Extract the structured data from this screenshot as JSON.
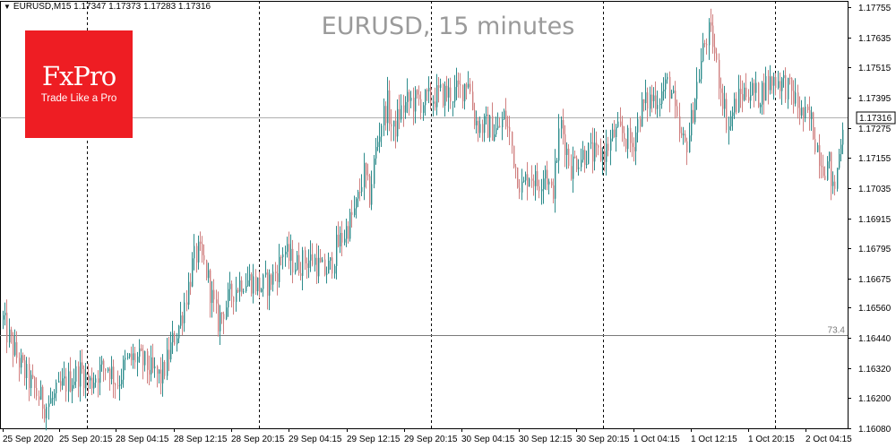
{
  "header": {
    "triangle": "▼",
    "text": "EURUSD,M15  1.17347 1.17373 1.17283 1.17316"
  },
  "title": "EURUSD, 15 minutes",
  "logo": {
    "brand": "FxPro",
    "tagline": "Trade Like a Pro"
  },
  "colors": {
    "bull": "#2d8c8c",
    "bear": "#d08080",
    "grid": "#000000",
    "axis_text": "#000000",
    "logo_bg": "#ee1d23",
    "title": "#9a9a9a"
  },
  "chart_data": {
    "type": "candlestick",
    "title": "EURUSD, 15 minutes",
    "ylim": [
      1.1608,
      1.1778
    ],
    "y_ticks": [
      "1.17755",
      "1.17635",
      "1.17515",
      "1.17395",
      "1.17275",
      "1.17155",
      "1.17035",
      "1.16915",
      "1.16795",
      "1.16675",
      "1.16560",
      "1.16440",
      "1.16320",
      "1.16200",
      "1.16080"
    ],
    "x_ticks": [
      "25 Sep 2020",
      "25 Sep 20:15",
      "28 Sep 04:15",
      "28 Sep 12:15",
      "28 Sep 20:15",
      "29 Sep 04:15",
      "29 Sep 12:15",
      "29 Sep 20:15",
      "30 Sep 04:15",
      "30 Sep 12:15",
      "30 Sep 20:15",
      "1 Oct 04:15",
      "1 Oct 12:15",
      "1 Oct 20:15",
      "2 Oct 04:15"
    ],
    "period_separators": [
      "25 Sep 20:15",
      "28 Sep 20:15",
      "29 Sep 20:15",
      "30 Sep 20:15",
      "1 Oct 20:15"
    ],
    "current_price": {
      "value": 1.17316,
      "label": "1.17316"
    },
    "horizontal_line": {
      "value": 1.1645,
      "label": "73.4"
    },
    "grid": false,
    "close_path": [
      [
        0,
        1.1655
      ],
      [
        8,
        1.1645
      ],
      [
        20,
        1.1635
      ],
      [
        30,
        1.1628
      ],
      [
        40,
        1.1622
      ],
      [
        50,
        1.1617
      ],
      [
        60,
        1.162
      ],
      [
        70,
        1.1625
      ],
      [
        80,
        1.1628
      ],
      [
        90,
        1.1631
      ],
      [
        100,
        1.1626
      ],
      [
        110,
        1.1631
      ],
      [
        120,
        1.1633
      ],
      [
        130,
        1.1626
      ],
      [
        140,
        1.1634
      ],
      [
        150,
        1.1636
      ],
      [
        160,
        1.1634
      ],
      [
        170,
        1.163
      ],
      [
        180,
        1.1628
      ],
      [
        190,
        1.164
      ],
      [
        200,
        1.165
      ],
      [
        210,
        1.1665
      ],
      [
        215,
        1.1674
      ],
      [
        220,
        1.1678
      ],
      [
        225,
        1.1675
      ],
      [
        230,
        1.167
      ],
      [
        236,
        1.166
      ],
      [
        242,
        1.165
      ],
      [
        250,
        1.1656
      ],
      [
        260,
        1.1663
      ],
      [
        270,
        1.1667
      ],
      [
        280,
        1.1667
      ],
      [
        290,
        1.1664
      ],
      [
        300,
        1.1666
      ],
      [
        310,
        1.1672
      ],
      [
        316,
        1.168
      ],
      [
        320,
        1.1676
      ],
      [
        330,
        1.1673
      ],
      [
        340,
        1.1675
      ],
      [
        350,
        1.1675
      ],
      [
        360,
        1.167
      ],
      [
        368,
        1.1672
      ],
      [
        375,
        1.168
      ],
      [
        383,
        1.1685
      ],
      [
        390,
        1.169
      ],
      [
        398,
        1.1697
      ],
      [
        405,
        1.171
      ],
      [
        412,
        1.17
      ],
      [
        418,
        1.1717
      ],
      [
        425,
        1.173
      ],
      [
        432,
        1.1737
      ],
      [
        438,
        1.1725
      ],
      [
        445,
        1.1733
      ],
      [
        455,
        1.1738
      ],
      [
        465,
        1.1738
      ],
      [
        475,
        1.1738
      ],
      [
        485,
        1.174
      ],
      [
        495,
        1.1741
      ],
      [
        505,
        1.1741
      ],
      [
        515,
        1.1743
      ],
      [
        522,
        1.1748
      ],
      [
        528,
        1.1732
      ],
      [
        535,
        1.1728
      ],
      [
        545,
        1.1728
      ],
      [
        555,
        1.1726
      ],
      [
        562,
        1.1732
      ],
      [
        568,
        1.1725
      ],
      [
        575,
        1.1712
      ],
      [
        582,
        1.1703
      ],
      [
        590,
        1.171
      ],
      [
        600,
        1.1705
      ],
      [
        608,
        1.1712
      ],
      [
        615,
        1.17
      ],
      [
        620,
        1.1712
      ],
      [
        625,
        1.173
      ],
      [
        630,
        1.1722
      ],
      [
        636,
        1.1712
      ],
      [
        645,
        1.1716
      ],
      [
        655,
        1.1718
      ],
      [
        665,
        1.1716
      ],
      [
        675,
        1.1718
      ],
      [
        685,
        1.1725
      ],
      [
        695,
        1.1725
      ],
      [
        705,
        1.172
      ],
      [
        715,
        1.1735
      ],
      [
        725,
        1.1739
      ],
      [
        735,
        1.174
      ],
      [
        745,
        1.1745
      ],
      [
        750,
        1.174
      ],
      [
        755,
        1.1728
      ],
      [
        760,
        1.1722
      ],
      [
        765,
        1.172
      ],
      [
        770,
        1.1728
      ],
      [
        775,
        1.174
      ],
      [
        780,
        1.175
      ],
      [
        785,
        1.176
      ],
      [
        790,
        1.1765
      ],
      [
        795,
        1.1762
      ],
      [
        800,
        1.175
      ],
      [
        806,
        1.174
      ],
      [
        812,
        1.1728
      ],
      [
        818,
        1.1735
      ],
      [
        825,
        1.174
      ],
      [
        835,
        1.1743
      ],
      [
        845,
        1.174
      ],
      [
        855,
        1.1745
      ],
      [
        865,
        1.1747
      ],
      [
        875,
        1.1745
      ],
      [
        885,
        1.174
      ],
      [
        895,
        1.1732
      ],
      [
        905,
        1.173
      ],
      [
        910,
        1.1722
      ],
      [
        915,
        1.1716
      ],
      [
        920,
        1.1712
      ],
      [
        925,
        1.1713
      ],
      [
        930,
        1.17
      ],
      [
        935,
        1.1715
      ],
      [
        940,
        1.173
      ],
      [
        942,
        1.17316
      ]
    ]
  }
}
